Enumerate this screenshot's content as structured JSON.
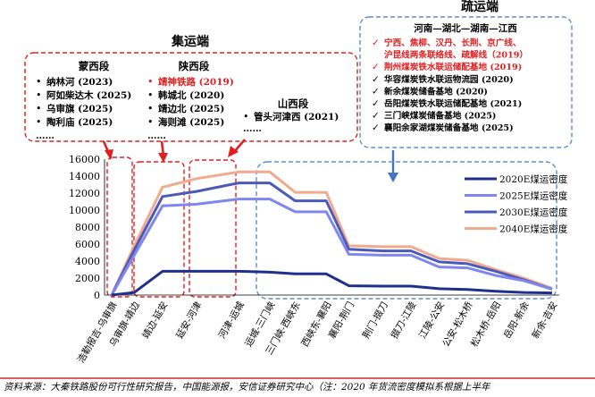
{
  "colors": {
    "red": "#e02020",
    "dashed_blue": "#5b8fd0",
    "source_bar": "#c00000",
    "series": [
      "#1f2f8c",
      "#7f86ee",
      "#4a5ab8",
      "#f0aa8e"
    ]
  },
  "collection": {
    "title": "集运端",
    "mengxi": {
      "title": "蒙西段",
      "items": [
        "纳林河 (2023)",
        "阿如柴达木 (2025)",
        "乌审旗 (2025)",
        "陶利庙 (2025)",
        "……"
      ]
    },
    "shaanxi": {
      "title": "陕西段",
      "items": [
        "靖神铁路 (2019)",
        "韩城北 (2020)",
        "靖边北 (2025)",
        "海则滩 (2025)",
        "……"
      ]
    },
    "shanxi": {
      "title": "山西段",
      "items": [
        "管头河津西 (2021)",
        "……"
      ]
    }
  },
  "distribution": {
    "title": "疏运端",
    "route": "河南—湖北—湖南—江西",
    "items": [
      {
        "text": "宁西、焦柳、汉丹、长荆、京广线、沪昆线两条联络线、疏解线 (2019)",
        "red": true,
        "mark": "✓"
      },
      {
        "text": "荆州煤炭铁水联运储配基地 (2019)",
        "red": true,
        "mark": "✓"
      },
      {
        "text": "华容煤炭铁水联运物流园 (2020)",
        "red": false,
        "mark": "✓"
      },
      {
        "text": "新余煤炭储备基地 (2020)",
        "red": false,
        "mark": "✓"
      },
      {
        "text": "岳阳煤炭铁水联运储配基地 (2021)",
        "red": false,
        "mark": "✓"
      },
      {
        "text": "三门峡煤炭储备基地 (2025)",
        "red": false,
        "mark": "✓"
      },
      {
        "text": "襄阳余家湖煤炭储备基地 (2025)",
        "red": false,
        "mark": "✓"
      }
    ]
  },
  "source": "资料来源：大秦铁路股份可行性研究报告，中国能源报，安信证券研究中心（注：2020 年货流密度模拟系根据上半年",
  "chart_data": {
    "type": "line",
    "categories": [
      "浩勒报吉-乌审旗",
      "乌审旗-靖边",
      "靖边-延安",
      "延安-河津",
      "河津-运城",
      "运城-三门峡",
      "三门峡-西峡东",
      "西峡东-襄阳",
      "襄阳-荆门",
      "荆门-掇刀",
      "掇刀-江陵",
      "江陵-公安",
      "公安-松木桥",
      "松木桥-岳阳",
      "岳阳-新余",
      "新余-吉安"
    ],
    "x_points": [
      0,
      0.8,
      1.8,
      3.0,
      4.5,
      5.6,
      6.5,
      7.6,
      8.4,
      9.6,
      10.6,
      11.6,
      12.6,
      13.6,
      14.6,
      15.6
    ],
    "series": [
      {
        "name": "2020E煤运密度",
        "values": [
          0,
          300,
          2800,
          2800,
          2800,
          2700,
          2500,
          2500,
          1100,
          1050,
          1050,
          750,
          650,
          450,
          300,
          250
        ]
      },
      {
        "name": "2025E煤运密度",
        "values": [
          0,
          4700,
          10500,
          10700,
          11300,
          11300,
          9800,
          9800,
          4800,
          4700,
          4700,
          3300,
          3200,
          2300,
          1700,
          700
        ]
      },
      {
        "name": "2030E煤运密度",
        "values": [
          0,
          5300,
          11600,
          12200,
          13200,
          13200,
          11100,
          11100,
          5400,
          5200,
          5200,
          3900,
          3700,
          2800,
          1800,
          700
        ]
      },
      {
        "name": "2040E煤运密度",
        "values": [
          0,
          5800,
          12700,
          13700,
          14500,
          14500,
          12100,
          12100,
          5800,
          5700,
          5700,
          4300,
          4100,
          3000,
          2000,
          800
        ]
      }
    ],
    "ylim": [
      0,
      16000
    ],
    "yticks": [
      0,
      2000,
      4000,
      6000,
      8000,
      10000,
      12000,
      14000,
      16000
    ],
    "legend": "right"
  }
}
